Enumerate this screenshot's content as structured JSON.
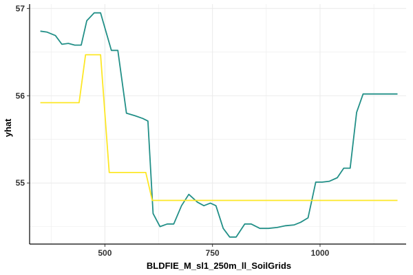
{
  "chart_data": {
    "type": "line",
    "title": "",
    "xlabel": "BLDFIE_M_sl1_250m_ll_SoilGrids",
    "ylabel": "yhat",
    "xlim": [
      325,
      1200
    ],
    "ylim": [
      54.3,
      57.05
    ],
    "x_ticks": [
      500,
      750,
      1000
    ],
    "x_tick_labels": [
      "500",
      "750",
      "1000"
    ],
    "y_ticks": [
      55,
      56,
      57
    ],
    "y_tick_labels": [
      "55",
      "56",
      "57"
    ],
    "grid": true,
    "legend": "none",
    "colors": {
      "teal": "#218f87",
      "yellow": "#fde725",
      "grid": "#ebebeb",
      "axis": "#000000"
    },
    "series": [
      {
        "color": "#218f87",
        "points": [
          [
            350,
            56.74
          ],
          [
            365,
            56.73
          ],
          [
            385,
            56.69
          ],
          [
            400,
            56.59
          ],
          [
            415,
            56.6
          ],
          [
            430,
            56.58
          ],
          [
            445,
            56.58
          ],
          [
            458,
            56.86
          ],
          [
            475,
            56.95
          ],
          [
            490,
            56.95
          ],
          [
            515,
            56.52
          ],
          [
            530,
            56.52
          ],
          [
            550,
            55.8
          ],
          [
            570,
            55.77
          ],
          [
            588,
            55.74
          ],
          [
            600,
            55.71
          ],
          [
            612,
            54.65
          ],
          [
            628,
            54.5
          ],
          [
            645,
            54.53
          ],
          [
            660,
            54.53
          ],
          [
            678,
            54.74
          ],
          [
            695,
            54.87
          ],
          [
            715,
            54.78
          ],
          [
            730,
            54.74
          ],
          [
            745,
            54.77
          ],
          [
            758,
            54.74
          ],
          [
            775,
            54.48
          ],
          [
            790,
            54.38
          ],
          [
            805,
            54.38
          ],
          [
            825,
            54.53
          ],
          [
            840,
            54.53
          ],
          [
            860,
            54.48
          ],
          [
            880,
            54.48
          ],
          [
            900,
            54.49
          ],
          [
            920,
            54.51
          ],
          [
            940,
            54.52
          ],
          [
            955,
            54.55
          ],
          [
            972,
            54.6
          ],
          [
            990,
            55.01
          ],
          [
            1005,
            55.01
          ],
          [
            1022,
            55.02
          ],
          [
            1040,
            55.06
          ],
          [
            1055,
            55.17
          ],
          [
            1070,
            55.17
          ],
          [
            1085,
            55.81
          ],
          [
            1100,
            56.02
          ],
          [
            1120,
            56.02
          ],
          [
            1140,
            56.02
          ],
          [
            1160,
            56.02
          ],
          [
            1180,
            56.02
          ]
        ]
      },
      {
        "color": "#fde725",
        "points": [
          [
            350,
            55.92
          ],
          [
            440,
            55.92
          ],
          [
            455,
            56.47
          ],
          [
            490,
            56.47
          ],
          [
            510,
            55.12
          ],
          [
            595,
            55.12
          ],
          [
            610,
            54.8
          ],
          [
            1180,
            54.8
          ]
        ]
      }
    ]
  }
}
